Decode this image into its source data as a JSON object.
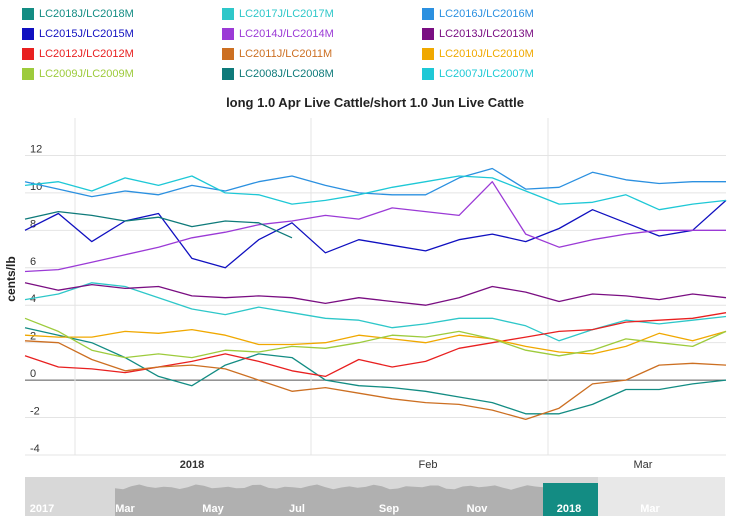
{
  "legend": [
    {
      "label": "LC2018J/LC2018M",
      "color": "#138c83"
    },
    {
      "label": "LC2017J/LC2017M",
      "color": "#2ec7c9"
    },
    {
      "label": "LC2016J/LC2016M",
      "color": "#2b90e0"
    },
    {
      "label": "LC2015J/LC2015M",
      "color": "#1010c0"
    },
    {
      "label": "LC2014J/LC2014M",
      "color": "#9b3ad6"
    },
    {
      "label": "LC2013J/LC2013M",
      "color": "#7a0e82"
    },
    {
      "label": "LC2012J/LC2012M",
      "color": "#e82020"
    },
    {
      "label": "LC2011J/LC2011M",
      "color": "#cc6f22"
    },
    {
      "label": "LC2010J/LC2010M",
      "color": "#f0a800"
    },
    {
      "label": "LC2009J/LC2009M",
      "color": "#9dcb3c"
    },
    {
      "label": "LC2008J/LC2008M",
      "color": "#0e7a7a"
    },
    {
      "label": "LC2007J/LC2007M",
      "color": "#1ec8d6"
    }
  ],
  "chart_data": {
    "type": "line",
    "title": "long 1.0 Apr Live Cattle/short 1.0 Jun Live Cattle",
    "ylabel": "cents/lb",
    "ylim": [
      -4,
      14
    ],
    "yticks": [
      -4,
      -2,
      0,
      2,
      4,
      6,
      8,
      10,
      12
    ],
    "x_tick_labels": [
      "2018",
      "Feb",
      "Mar"
    ],
    "grid": true,
    "legend_position": "top",
    "series": [
      {
        "name": "LC2018J/LC2018M",
        "values": [
          2.8,
          2.4,
          2.0,
          1.2,
          0.2,
          -0.3,
          0.8,
          1.4,
          1.2,
          0.0,
          -0.3,
          -0.4,
          -0.6,
          -0.9,
          -1.2,
          -1.8,
          -1.8,
          -1.3,
          -0.5,
          -0.5,
          -0.2,
          0.0
        ]
      },
      {
        "name": "LC2017J/LC2017M",
        "values": [
          4.3,
          4.6,
          5.2,
          5.0,
          4.4,
          3.8,
          3.5,
          3.9,
          3.6,
          3.3,
          3.2,
          2.8,
          3.0,
          3.3,
          3.3,
          2.9,
          2.1,
          2.7,
          3.2,
          3.0,
          3.2,
          3.4
        ]
      },
      {
        "name": "LC2016J/LC2016M",
        "values": [
          10.6,
          10.2,
          9.8,
          10.1,
          9.9,
          10.4,
          10.1,
          10.6,
          10.9,
          10.4,
          10.0,
          9.9,
          9.9,
          10.8,
          11.3,
          10.2,
          10.3,
          11.1,
          10.7,
          10.5,
          10.6,
          10.6
        ]
      },
      {
        "name": "LC2015J/LC2015M",
        "values": [
          8.0,
          8.9,
          7.4,
          8.5,
          8.9,
          6.5,
          6.0,
          7.5,
          8.4,
          6.8,
          7.5,
          7.2,
          6.9,
          7.5,
          7.8,
          7.4,
          8.1,
          9.1,
          8.4,
          7.7,
          8.0,
          9.6
        ]
      },
      {
        "name": "LC2014J/LC2014M",
        "values": [
          5.8,
          5.9,
          6.3,
          6.7,
          7.1,
          7.6,
          7.9,
          8.3,
          8.5,
          8.8,
          8.6,
          9.2,
          9.0,
          8.8,
          10.6,
          7.8,
          7.1,
          7.5,
          7.8,
          8.0,
          8.0,
          8.0
        ]
      },
      {
        "name": "LC2013J/LC2013M",
        "values": [
          5.2,
          4.8,
          5.1,
          4.9,
          5.0,
          4.5,
          4.4,
          4.5,
          4.4,
          4.1,
          4.4,
          4.2,
          4.0,
          4.4,
          5.0,
          4.7,
          4.2,
          4.6,
          4.5,
          4.3,
          4.6,
          4.4
        ]
      },
      {
        "name": "LC2012J/LC2012M",
        "values": [
          1.3,
          0.7,
          0.6,
          0.4,
          0.7,
          1.0,
          1.4,
          1.0,
          0.5,
          0.2,
          1.1,
          0.7,
          1.0,
          1.7,
          2.0,
          2.3,
          2.6,
          2.7,
          3.1,
          3.2,
          3.3,
          3.6
        ]
      },
      {
        "name": "LC2011J/LC2011M",
        "values": [
          2.1,
          2.0,
          1.1,
          0.5,
          0.7,
          0.8,
          0.6,
          0.0,
          -0.6,
          -0.4,
          -0.7,
          -1.0,
          -1.2,
          -1.3,
          -1.6,
          -2.1,
          -1.5,
          -0.2,
          0.0,
          0.8,
          0.9,
          0.8
        ]
      },
      {
        "name": "LC2010J/LC2010M",
        "values": [
          2.4,
          2.3,
          2.3,
          2.6,
          2.5,
          2.7,
          2.4,
          1.9,
          1.9,
          2.0,
          2.4,
          2.2,
          2.0,
          2.4,
          2.2,
          1.8,
          1.5,
          1.4,
          1.8,
          2.5,
          2.1,
          2.6
        ]
      },
      {
        "name": "LC2009J/LC2009M",
        "values": [
          3.3,
          2.6,
          1.6,
          1.2,
          1.4,
          1.2,
          1.6,
          1.5,
          1.8,
          1.7,
          2.0,
          2.4,
          2.3,
          2.6,
          2.2,
          1.6,
          1.3,
          1.6,
          2.2,
          2.0,
          1.8,
          2.6
        ]
      },
      {
        "name": "LC2008J/LC2008M",
        "values": [
          8.6,
          9.0,
          8.8,
          8.5,
          8.7,
          8.2,
          8.5,
          8.4,
          7.6
        ]
      },
      {
        "name": "LC2007J/LC2007M",
        "values": [
          10.4,
          10.6,
          10.1,
          10.8,
          10.4,
          10.9,
          10.0,
          9.9,
          9.4,
          9.6,
          9.9,
          10.3,
          10.6,
          10.9,
          10.8,
          10.1,
          9.4,
          9.5,
          9.9,
          9.1,
          9.4,
          9.6
        ]
      }
    ]
  },
  "navigator": {
    "labels": [
      "2017",
      "Mar",
      "May",
      "Jul",
      "Sep",
      "Nov",
      "2018",
      "Mar"
    ]
  }
}
